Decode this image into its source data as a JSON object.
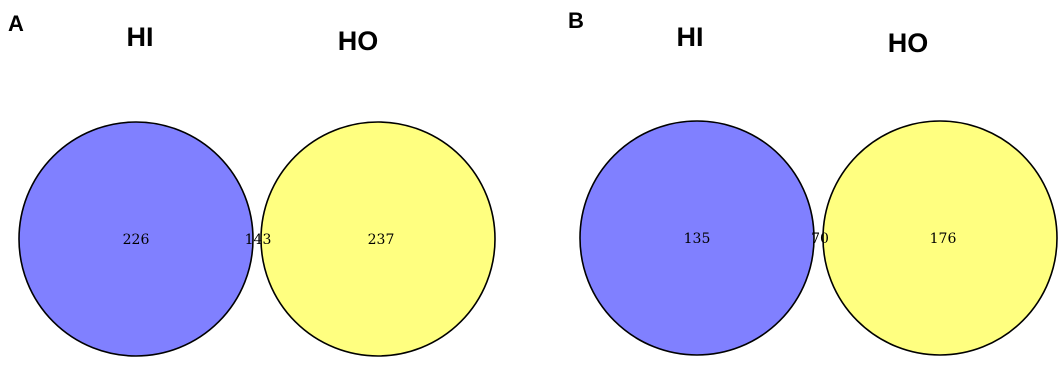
{
  "colors": {
    "left_set": "#8080ff",
    "right_set": "#ffff80",
    "overlap": "#bdbd80",
    "outline": "#000000"
  },
  "panels": [
    {
      "letter": "A",
      "left_label": "HI",
      "right_label": "HO",
      "left_only": "226",
      "overlap": "143",
      "right_only": "237"
    },
    {
      "letter": "B",
      "left_label": "HI",
      "right_label": "HO",
      "left_only": "135",
      "overlap": "70",
      "right_only": "176"
    }
  ]
}
